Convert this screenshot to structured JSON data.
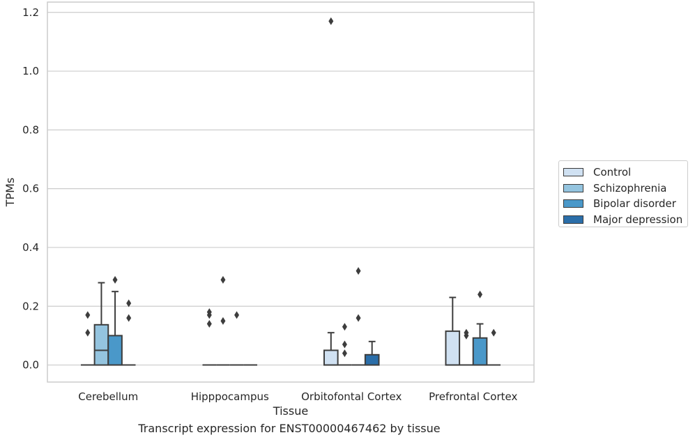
{
  "chart_data": {
    "type": "box",
    "title": "Transcript expression for ENST00000467462 by tissue",
    "xlabel": "Tissue",
    "ylabel": "TPMs",
    "categories": [
      "Cerebellum",
      "Hipppocampus",
      "Orbitofontal Cortex",
      "Prefrontal Cortex"
    ],
    "ylim": [
      -0.058,
      1.235
    ],
    "yticks": [
      0.0,
      0.2,
      0.4,
      0.6,
      0.8,
      1.0,
      1.2
    ],
    "ytick_labels": [
      "0.0",
      "0.2",
      "0.4",
      "0.6",
      "0.8",
      "1.0",
      "1.2"
    ],
    "grid": true,
    "legend_position": "right",
    "series": [
      {
        "name": "Control",
        "color": "#d0e1f2",
        "boxes": [
          {
            "category": "Cerebellum",
            "q1": 0,
            "median": 0,
            "q3": 0,
            "whisker_low": 0,
            "whisker_high": 0,
            "outliers": [
              0.11,
              0.17
            ]
          },
          {
            "category": "Hipppocampus",
            "q1": 0,
            "median": 0,
            "q3": 0,
            "whisker_low": 0,
            "whisker_high": 0,
            "outliers": [
              0.14,
              0.17,
              0.18
            ]
          },
          {
            "category": "Orbitofontal Cortex",
            "q1": 0,
            "median": 0,
            "q3": 0.05,
            "whisker_low": 0,
            "whisker_high": 0.11,
            "outliers": [
              1.17
            ]
          },
          {
            "category": "Prefrontal Cortex",
            "q1": 0,
            "median": 0,
            "q3": 0.115,
            "whisker_low": 0,
            "whisker_high": 0.23,
            "outliers": []
          }
        ]
      },
      {
        "name": "Schizophrenia",
        "color": "#94c4df",
        "boxes": [
          {
            "category": "Cerebellum",
            "q1": 0,
            "median": 0.05,
            "q3": 0.137,
            "whisker_low": 0,
            "whisker_high": 0.28,
            "outliers": []
          },
          {
            "category": "Hipppocampus",
            "q1": 0,
            "median": 0,
            "q3": 0,
            "whisker_low": 0,
            "whisker_high": 0,
            "outliers": [
              0.15,
              0.29
            ]
          },
          {
            "category": "Orbitofontal Cortex",
            "q1": 0,
            "median": 0,
            "q3": 0,
            "whisker_low": 0,
            "whisker_high": 0,
            "outliers": [
              0.04,
              0.07,
              0.13
            ]
          },
          {
            "category": "Prefrontal Cortex",
            "q1": 0,
            "median": 0,
            "q3": 0,
            "whisker_low": 0,
            "whisker_high": 0,
            "outliers": [
              0.1,
              0.11
            ]
          }
        ]
      },
      {
        "name": "Bipolar disorder",
        "color": "#4a98c9",
        "boxes": [
          {
            "category": "Cerebellum",
            "q1": 0,
            "median": 0,
            "q3": 0.1,
            "whisker_low": 0,
            "whisker_high": 0.25,
            "outliers": [
              0.29
            ]
          },
          {
            "category": "Hipppocampus",
            "q1": 0,
            "median": 0,
            "q3": 0,
            "whisker_low": 0,
            "whisker_high": 0,
            "outliers": [
              0.17
            ]
          },
          {
            "category": "Orbitofontal Cortex",
            "q1": 0,
            "median": 0,
            "q3": 0,
            "whisker_low": 0,
            "whisker_high": 0,
            "outliers": [
              0.16,
              0.32
            ]
          },
          {
            "category": "Prefrontal Cortex",
            "q1": 0,
            "median": 0,
            "q3": 0.092,
            "whisker_low": 0,
            "whisker_high": 0.14,
            "outliers": [
              0.24
            ]
          }
        ]
      },
      {
        "name": "Major depression",
        "color": "#2b6ea9",
        "boxes": [
          {
            "category": "Cerebellum",
            "q1": 0,
            "median": 0,
            "q3": 0,
            "whisker_low": 0,
            "whisker_high": 0,
            "outliers": [
              0.16,
              0.21
            ]
          },
          {
            "category": "Hipppocampus",
            "q1": 0,
            "median": 0,
            "q3": 0,
            "whisker_low": 0,
            "whisker_high": 0,
            "outliers": []
          },
          {
            "category": "Orbitofontal Cortex",
            "q1": 0,
            "median": 0,
            "q3": 0.035,
            "whisker_low": 0,
            "whisker_high": 0.08,
            "outliers": []
          },
          {
            "category": "Prefrontal Cortex",
            "q1": 0,
            "median": 0,
            "q3": 0,
            "whisker_low": 0,
            "whisker_high": 0,
            "outliers": [
              0.11
            ]
          }
        ]
      }
    ]
  },
  "legend": {
    "items": [
      {
        "label": "Control",
        "color": "#d0e1f2"
      },
      {
        "label": "Schizophrenia",
        "color": "#94c4df"
      },
      {
        "label": "Bipolar disorder",
        "color": "#4a98c9"
      },
      {
        "label": "Major depression",
        "color": "#2b6ea9"
      }
    ]
  }
}
